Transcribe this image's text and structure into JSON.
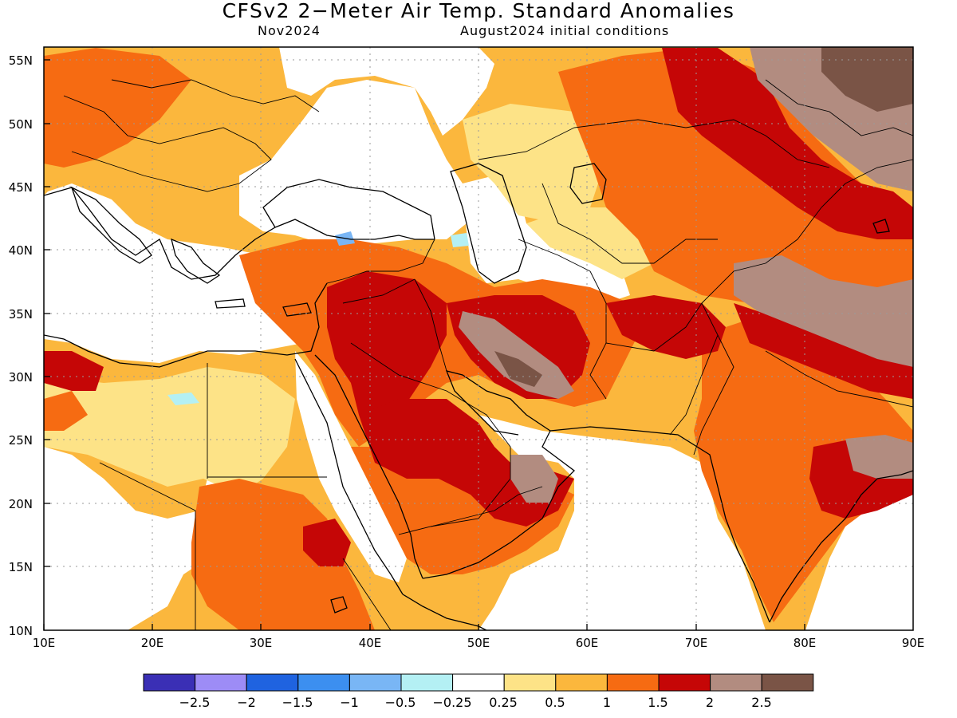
{
  "header": {
    "title": "CFSv2 2−Meter Air Temp. Standard Anomalies",
    "valid_month": "Nov2024",
    "init": "August2024 initial conditions"
  },
  "axes": {
    "lon_labels": [
      "10E",
      "20E",
      "30E",
      "40E",
      "50E",
      "60E",
      "70E",
      "80E",
      "90E"
    ],
    "lat_labels": [
      "55N",
      "50N",
      "45N",
      "40N",
      "35N",
      "30N",
      "25N",
      "20N",
      "15N",
      "10N"
    ]
  },
  "colorbar": {
    "colors": [
      "#3a2fb5",
      "#9d8cf6",
      "#1f63e0",
      "#3c8ff0",
      "#79b6f5",
      "#b4f0f4",
      "#ffffff",
      "#fde387",
      "#fbb73d",
      "#f66b12",
      "#c50606",
      "#b28c80",
      "#7a5446"
    ],
    "labels": [
      "−2.5",
      "−2",
      "−1.5",
      "−1",
      "−0.5",
      "−0.25",
      "0.25",
      "0.5",
      "1",
      "1.5",
      "2",
      "2.5"
    ]
  }
}
